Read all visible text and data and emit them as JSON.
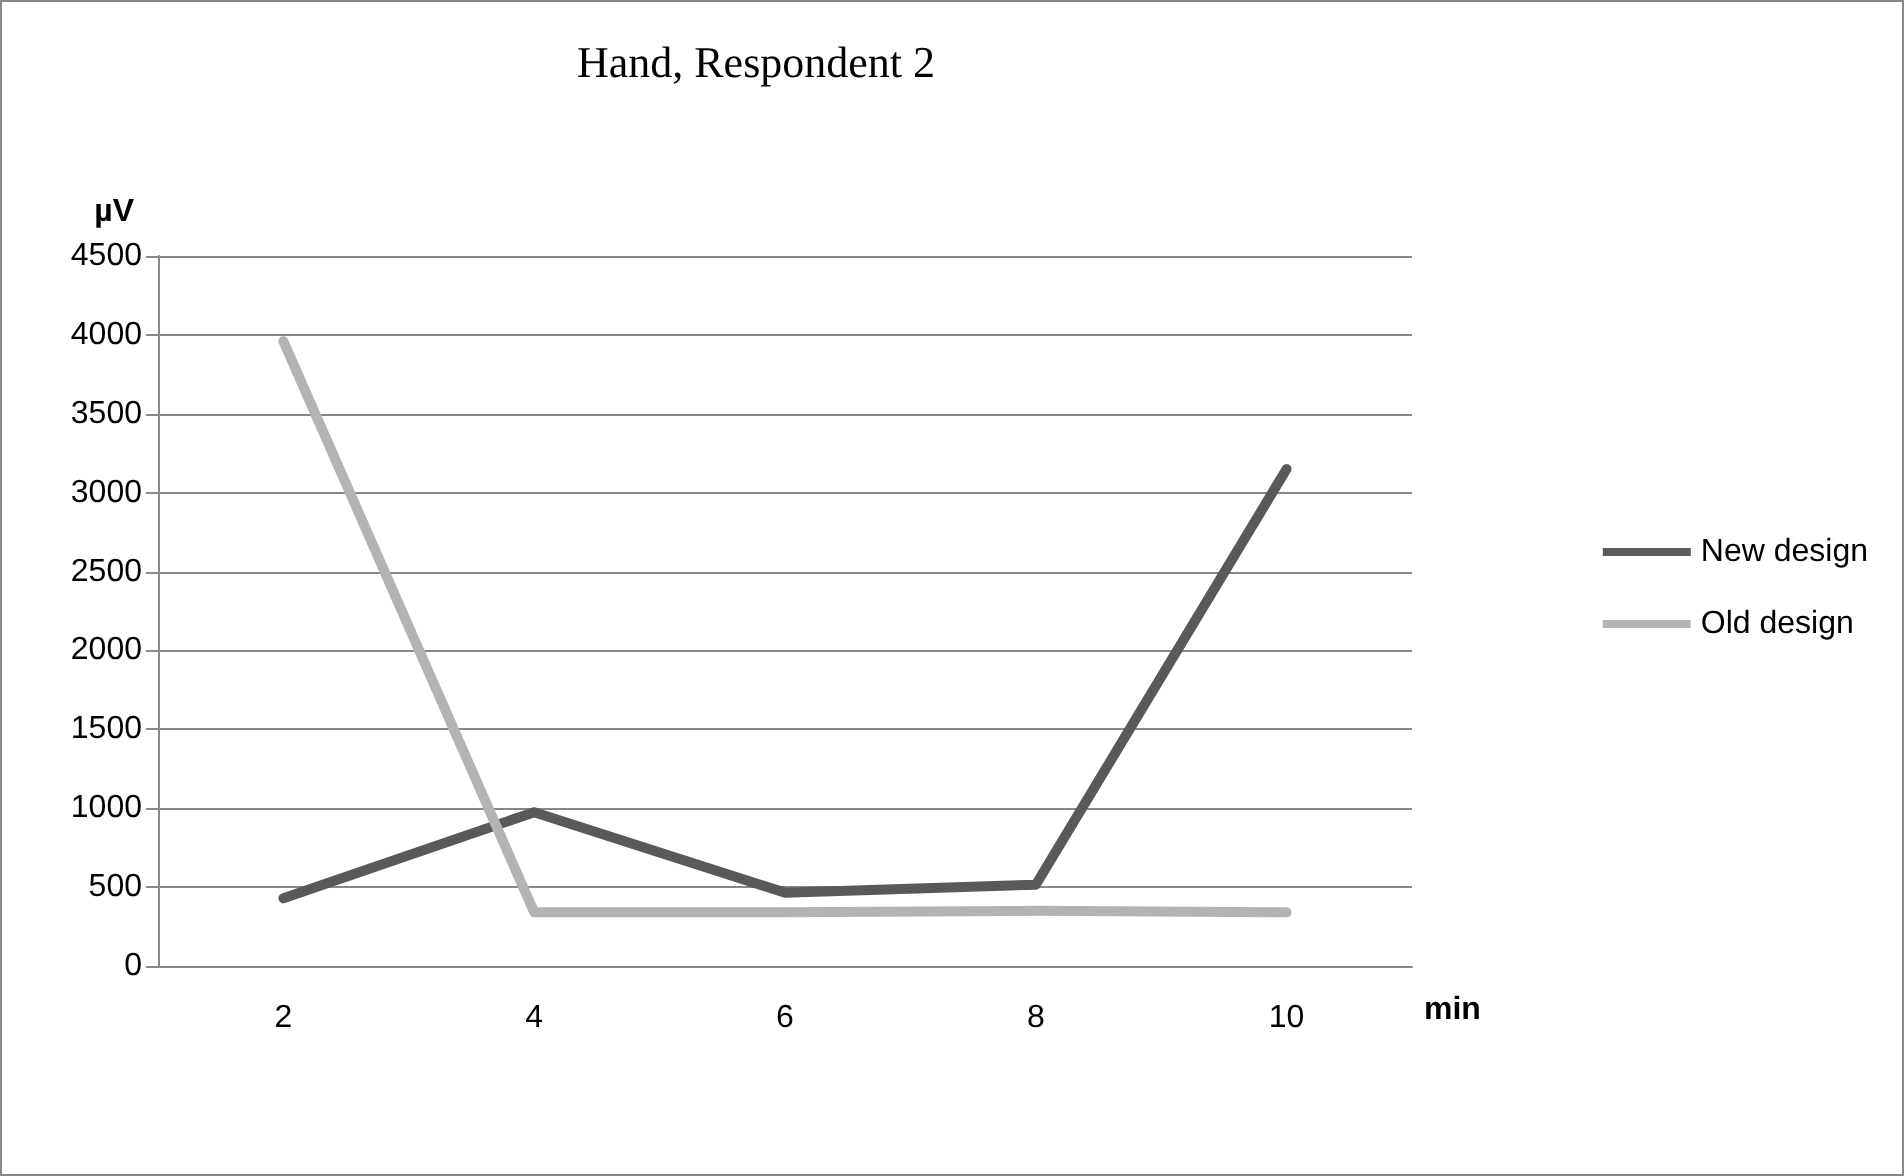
{
  "chart_data": {
    "type": "line",
    "title": "Hand, Respondent 2",
    "xlabel": "min",
    "ylabel": "µV",
    "categories": [
      "2",
      "4",
      "6",
      "8",
      "10"
    ],
    "series": [
      {
        "name": "New design",
        "color": "#595959",
        "values": [
          430,
          975,
          465,
          515,
          3150
        ]
      },
      {
        "name": "Old design",
        "color": "#b3b3b3",
        "values": [
          3960,
          340,
          340,
          350,
          340
        ]
      }
    ],
    "ylim": [
      0,
      4500
    ],
    "yticks": [
      0,
      500,
      1000,
      1500,
      2000,
      2500,
      3000,
      3500,
      4000,
      4500
    ],
    "grid": "y",
    "legend": "right",
    "marker": "none",
    "line_style": "solid"
  }
}
